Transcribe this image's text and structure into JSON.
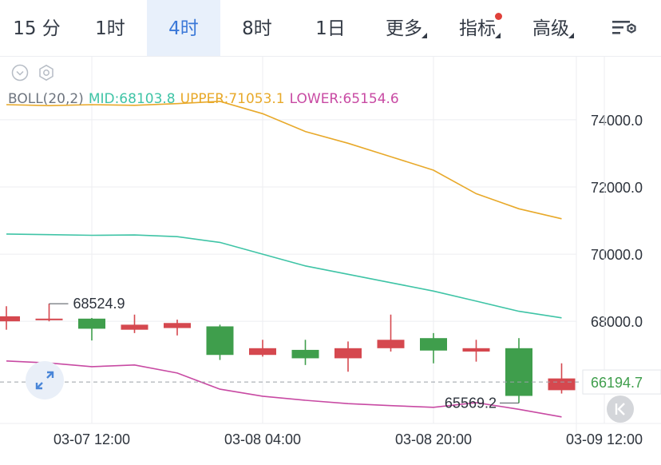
{
  "tabs": [
    {
      "label": "15 分",
      "active": false,
      "dropdown": false
    },
    {
      "label": "1时",
      "active": false,
      "dropdown": false
    },
    {
      "label": "4时",
      "active": true,
      "dropdown": false
    },
    {
      "label": "8时",
      "active": false,
      "dropdown": false
    },
    {
      "label": "1日",
      "active": false,
      "dropdown": false
    },
    {
      "label": "更多",
      "active": false,
      "dropdown": true
    },
    {
      "label": "指标",
      "active": false,
      "dropdown": true,
      "badge": true
    },
    {
      "label": "高级",
      "active": false,
      "dropdown": true
    }
  ],
  "settings_icon": "chart-settings-icon",
  "controls": {
    "collapse_icon": "chevron-down-circle-icon",
    "settings_icon": "hexagon-gear-icon"
  },
  "legend": {
    "name": "BOLL(20,2)",
    "mid": "MID:68103.8",
    "upper": "UPPER:71053.1",
    "lower": "LOWER:65154.6"
  },
  "colors": {
    "accent": "#3b78d8",
    "up": "#d5484f",
    "down": "#3f9e4c",
    "mid": "#3fc4a6",
    "upper": "#e8a92a",
    "lower": "#c84aa3",
    "grid": "#eceef1",
    "axis_text": "#2d333c"
  },
  "expand_icon": "expand-diagonal-icon",
  "reset_icon": "chevron-left-icon",
  "chart_data": {
    "type": "candlestick",
    "yticks": [
      "74000.0",
      "72000.0",
      "70000.0",
      "68000.0"
    ],
    "ylim": [
      64960,
      75900
    ],
    "xticks": [
      {
        "label": "03-07 12:00",
        "index": 2
      },
      {
        "label": "03-08 04:00",
        "index": 6
      },
      {
        "label": "03-08 20:00",
        "index": 10
      },
      {
        "label": "03-09 12:00",
        "index": 14
      }
    ],
    "candles": [
      {
        "open": 68150,
        "close": 68000,
        "high": 68450,
        "low": 67750
      },
      {
        "open": 68080,
        "close": 68050,
        "high": 68524.9,
        "low": 68000
      },
      {
        "open": 67780,
        "close": 68080,
        "high": 68100,
        "low": 67430
      },
      {
        "open": 67900,
        "close": 67750,
        "high": 68200,
        "low": 67650
      },
      {
        "open": 67950,
        "close": 67800,
        "high": 68050,
        "low": 67580
      },
      {
        "open": 67000,
        "close": 67850,
        "high": 67900,
        "low": 66850
      },
      {
        "open": 67200,
        "close": 67000,
        "high": 67450,
        "low": 66950
      },
      {
        "open": 66900,
        "close": 67150,
        "high": 67450,
        "low": 66700
      },
      {
        "open": 67200,
        "close": 66900,
        "high": 67400,
        "low": 66500
      },
      {
        "open": 67450,
        "close": 67200,
        "high": 68200,
        "low": 67100
      },
      {
        "open": 67130,
        "close": 67500,
        "high": 67650,
        "low": 66750
      },
      {
        "open": 67200,
        "close": 67100,
        "high": 67450,
        "low": 66800
      },
      {
        "open": 65780,
        "close": 67200,
        "high": 67500,
        "low": 65569.2
      },
      {
        "open": 66300,
        "close": 65950,
        "high": 66750,
        "low": 65850
      }
    ],
    "series": [
      {
        "name": "UPPER",
        "values": [
          74450,
          74420,
          74450,
          74430,
          74480,
          74550,
          74180,
          73650,
          73300,
          72900,
          72500,
          71800,
          71350,
          71053.1
        ]
      },
      {
        "name": "MID",
        "values": [
          70600,
          70580,
          70560,
          70570,
          70520,
          70350,
          70000,
          69650,
          69400,
          69150,
          68900,
          68600,
          68300,
          68103.8
        ]
      },
      {
        "name": "LOWER",
        "values": [
          66820,
          66760,
          66650,
          66700,
          66460,
          65980,
          65770,
          65650,
          65550,
          65490,
          65440,
          65580,
          65380,
          65154.6
        ]
      }
    ],
    "annotations": [
      {
        "label": "68524.9",
        "candle": 1,
        "at": "high"
      },
      {
        "label": "65569.2",
        "candle": 12,
        "at": "low"
      }
    ],
    "current_price": {
      "label": "66194.7",
      "value": 66194.7
    }
  }
}
